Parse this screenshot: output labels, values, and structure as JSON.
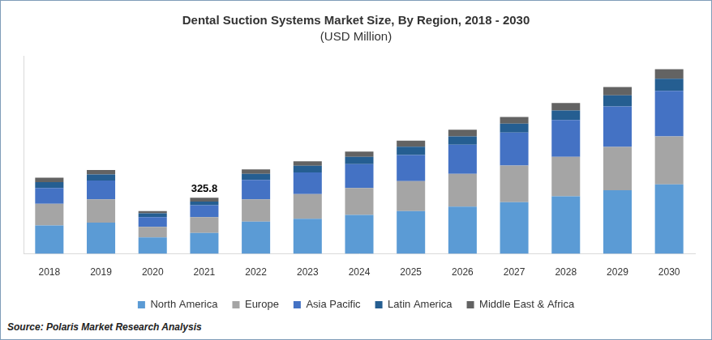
{
  "chart_data": {
    "type": "bar",
    "title": "Dental Suction Systems Market Size, By Region, 2018 - 2030",
    "subtitle": "(USD Million)",
    "source": "Source: Polaris Market Research Analysis",
    "categories": [
      "2018",
      "2019",
      "2020",
      "2021",
      "2022",
      "2023",
      "2024",
      "2025",
      "2026",
      "2027",
      "2028",
      "2029",
      "2030"
    ],
    "series": [
      {
        "name": "North America",
        "color": "#5b9bd5",
        "values": [
          165,
          182,
          96,
          121.6,
          187,
          204,
          226,
          248,
          274,
          300,
          334,
          369,
          404
        ]
      },
      {
        "name": "Europe",
        "color": "#a5a5a5",
        "values": [
          126,
          135,
          61,
          91.2,
          130,
          143,
          156,
          174,
          191,
          213,
          230,
          252,
          278
        ]
      },
      {
        "name": "Asia Pacific",
        "color": "#4472c4",
        "values": [
          91,
          109,
          56,
          69.5,
          113,
          126,
          139,
          152,
          169,
          191,
          213,
          235,
          265
        ]
      },
      {
        "name": "Latin America",
        "color": "#255e91",
        "values": [
          35,
          35,
          22,
          21.7,
          35,
          39,
          43,
          48,
          48,
          52,
          56,
          65,
          70
        ]
      },
      {
        "name": "Middle East & Africa",
        "color": "#636363",
        "values": [
          26,
          26,
          13,
          21.8,
          26,
          26,
          30,
          35,
          39,
          39,
          43,
          48,
          56
        ]
      }
    ],
    "annotations": [
      {
        "x": "2021",
        "y": 325.8,
        "text": "325.8"
      }
    ],
    "stacked": true,
    "ylim": [
      0,
      1150
    ],
    "yticks": [],
    "grid": false,
    "legend": "bottom",
    "tick_labels": "x"
  }
}
